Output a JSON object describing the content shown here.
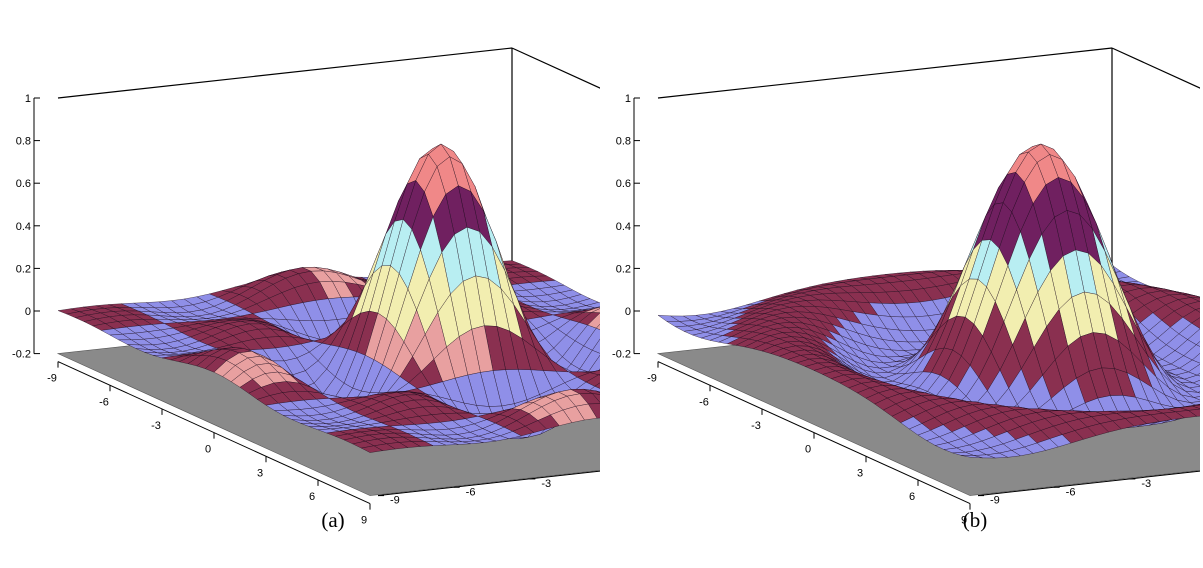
{
  "chart_data": [
    {
      "type": "surface3d",
      "caption": "(a)",
      "function": "sinc(x)·sinc(y)",
      "xlim": [
        -9,
        9
      ],
      "ylim": [
        -9,
        9
      ],
      "zlim": [
        -0.2,
        1
      ],
      "z_ticks": [
        "-0.2",
        "0",
        "0.2",
        "0.4",
        "0.6",
        "0.8",
        "1"
      ],
      "x_ticks": [
        "-9",
        "-6",
        "-3",
        "0",
        "3",
        "6",
        "9"
      ],
      "y_ticks": [
        "-9",
        "-6",
        "-3",
        "0",
        "3",
        "6",
        "9"
      ],
      "peak": {
        "x": 0,
        "y": 0,
        "z": 1
      },
      "color_bands": [
        "#8f8fe8",
        "#e8a0a0",
        "#8a3050",
        "#f2eeb0",
        "#b8eef2",
        "#702060",
        "#f08888"
      ],
      "floor_color": "#8a8a8a"
    },
    {
      "type": "surface3d",
      "caption": "(b)",
      "function": "jinc(r), r = sqrt(x²+y²)",
      "xlim": [
        -9,
        9
      ],
      "ylim": [
        -9,
        9
      ],
      "zlim": [
        -0.2,
        1
      ],
      "z_ticks": [
        "-0.2",
        "0",
        "0.2",
        "0.4",
        "0.6",
        "0.8",
        "1"
      ],
      "x_ticks": [
        "-9",
        "-6",
        "-3",
        "0",
        "3",
        "6",
        "9"
      ],
      "y_ticks": [
        "-9",
        "-6",
        "-3",
        "0",
        "3",
        "6",
        "9"
      ],
      "peak": {
        "x": 0,
        "y": 0,
        "z": 1
      },
      "color_bands": [
        "#8f8fe8",
        "#e8a0a0",
        "#8a3050",
        "#f2eeb0",
        "#b8eef2",
        "#702060",
        "#f08888"
      ],
      "floor_color": "#8a8a8a"
    }
  ]
}
